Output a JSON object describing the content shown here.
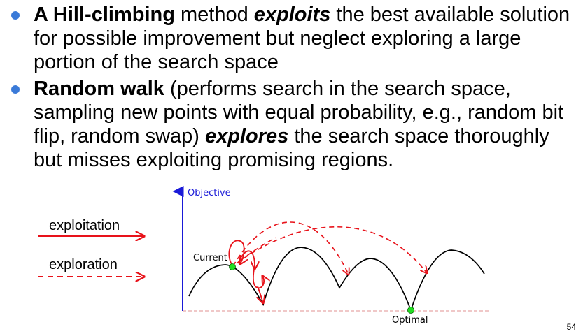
{
  "bullets": [
    {
      "b1": "A Hill-climbing",
      "t1": " method ",
      "i1": "exploits",
      "t2": " the best available solution for possible improvement but neglect exploring a large portion of the search space"
    },
    {
      "b1": "Random walk",
      "t1": " (performs search in the search space, sampling new points with equal probability, e.g., random bit flip, random swap) ",
      "i1": "explores",
      "t2": " the search space thoroughly but misses exploiting promising regions."
    }
  ],
  "legend": {
    "exploitation": "exploitation",
    "exploration": "exploration"
  },
  "diagram": {
    "y_axis_label": "Objective",
    "current_label": "Current",
    "optimal_label": "Optimal"
  },
  "colors": {
    "bullet": "#3a7ad8",
    "axis": "#1a1ad8",
    "arrow": "#e8121a",
    "point": "#22dd22",
    "baseline": "#e09090"
  },
  "page_number": "54"
}
